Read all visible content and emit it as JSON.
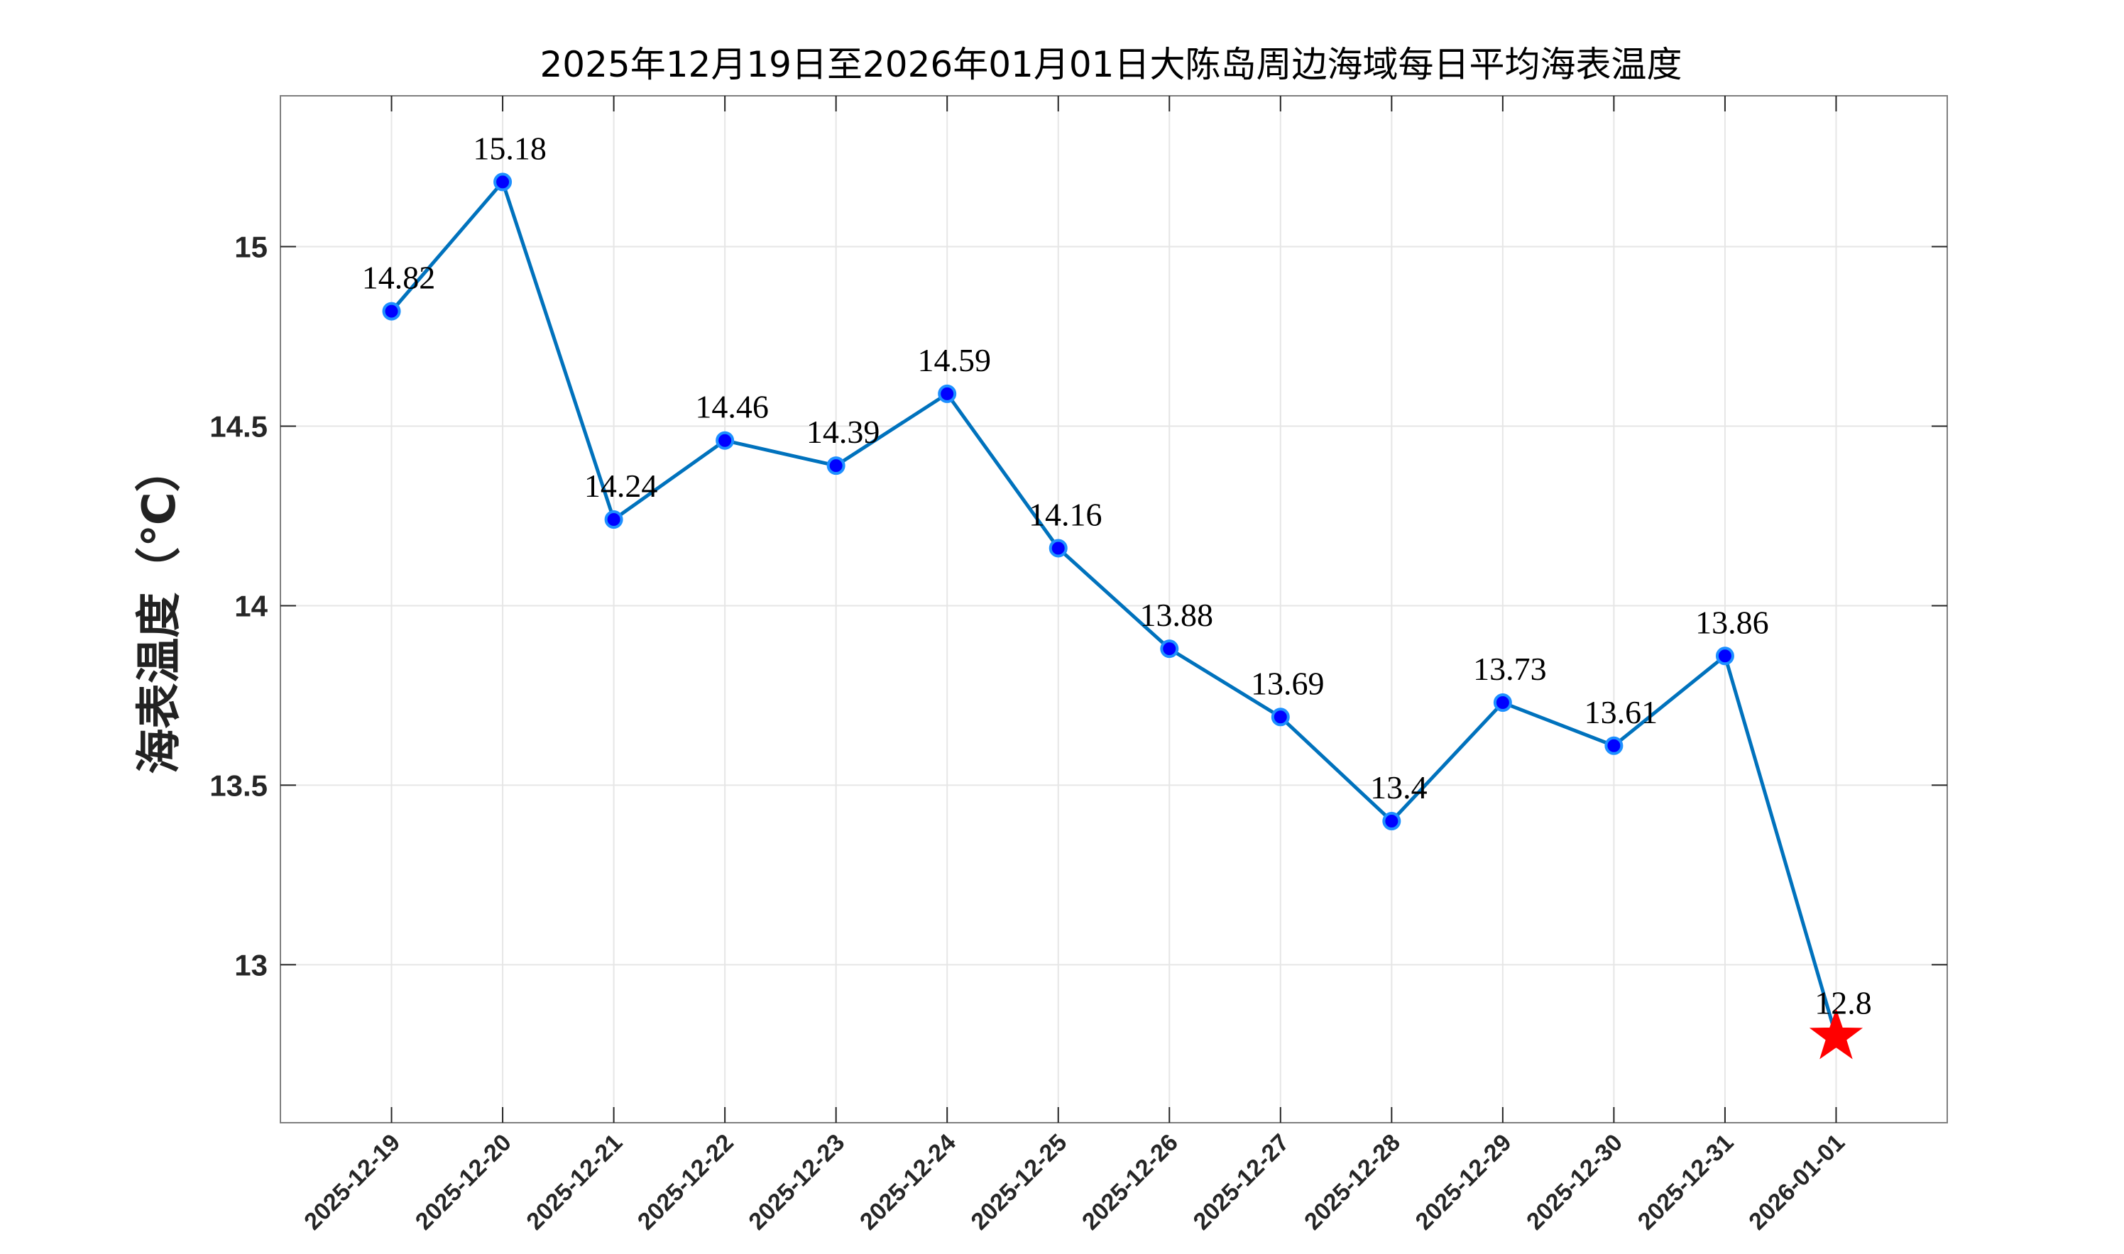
{
  "colors": {
    "line": "#0072BD",
    "marker_fill": "#0000FF",
    "marker_edge": "#1E90FF",
    "star": "#FF0000",
    "grid": "#E6E6E6",
    "axis": "#7F7F7F"
  },
  "chart_data": {
    "type": "line",
    "title": "2025年12月19日至2026年01月01日大陈岛周边海域每日平均海表温度",
    "xlabel": "",
    "ylabel": "海表温度（℃）",
    "categories": [
      "2025-12-19",
      "2025-12-20",
      "2025-12-21",
      "2025-12-22",
      "2025-12-23",
      "2025-12-24",
      "2025-12-25",
      "2025-12-26",
      "2025-12-27",
      "2025-12-28",
      "2025-12-29",
      "2025-12-30",
      "2025-12-31",
      "2026-01-01"
    ],
    "values": [
      14.82,
      15.18,
      14.24,
      14.46,
      14.39,
      14.59,
      14.16,
      13.88,
      13.69,
      13.4,
      13.73,
      13.61,
      13.86,
      12.8
    ],
    "data_labels": [
      "14.82",
      "15.18",
      "14.24",
      "14.46",
      "14.39",
      "14.59",
      "14.16",
      "13.88",
      "13.69",
      "13.4",
      "13.73",
      "13.61",
      "13.86",
      "12.8"
    ],
    "highlight": {
      "index": 13,
      "marker": "star"
    },
    "yticks": [
      13,
      13.5,
      14,
      14.5,
      15
    ],
    "ytick_labels": [
      "13",
      "13.5",
      "14",
      "14.5",
      "15"
    ],
    "ylim": [
      12.56,
      15.42
    ],
    "grid": true
  }
}
